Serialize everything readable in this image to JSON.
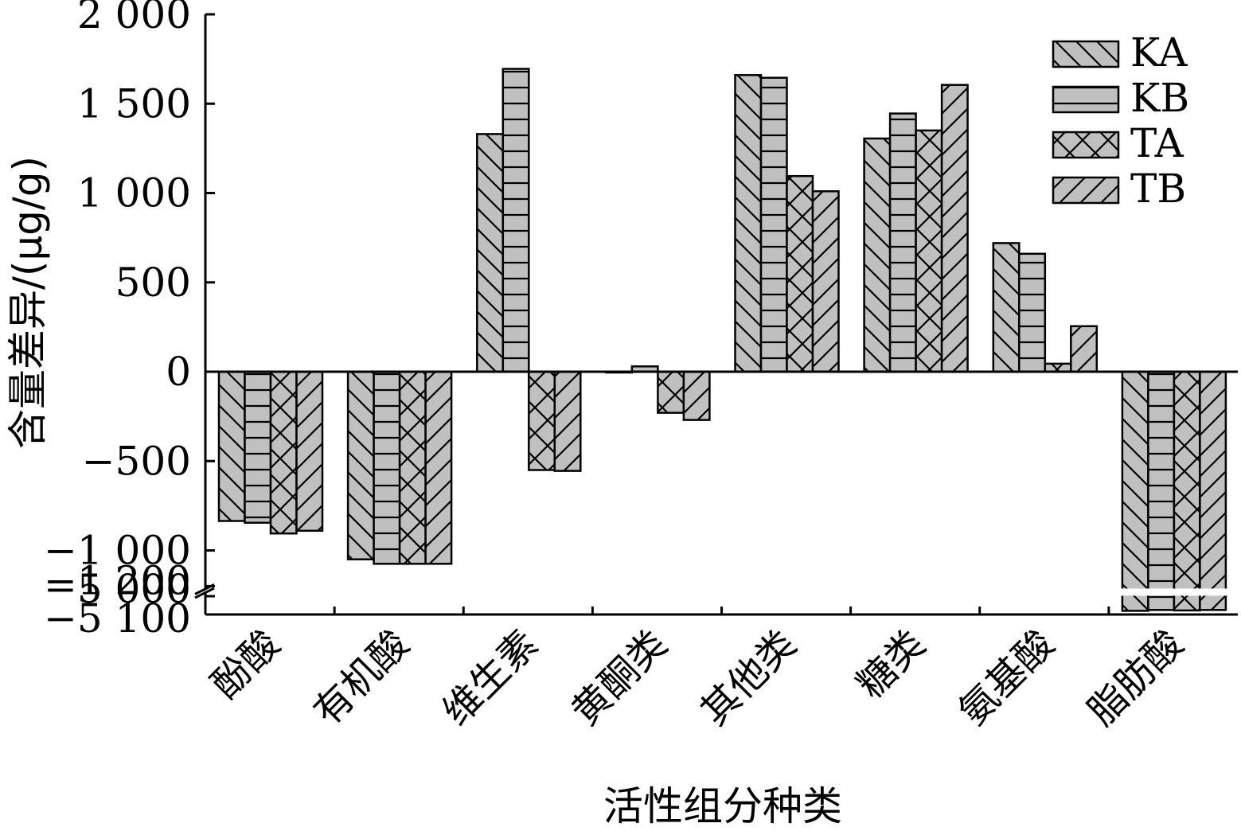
{
  "chart_data": {
    "type": "bar",
    "xlabel": "活性组分种类",
    "ylabel": "含量差异/(μg/g)",
    "categories": [
      "酚酸",
      "有机酸",
      "维生素",
      "黄酮类",
      "其他类",
      "糖类",
      "氨基酸",
      "脂肪酸"
    ],
    "series": [
      {
        "name": "KA",
        "pattern": "diag-down",
        "values": [
          -835,
          -1050,
          1330,
          0,
          1660,
          1305,
          720,
          -5080
        ]
      },
      {
        "name": "KB",
        "pattern": "horizontal",
        "values": [
          -845,
          -1075,
          1695,
          30,
          1645,
          1445,
          660,
          -5075
        ]
      },
      {
        "name": "TA",
        "pattern": "crosshatch",
        "values": [
          -905,
          -1075,
          -550,
          -230,
          1095,
          1350,
          45,
          -5078
        ]
      },
      {
        "name": "TB",
        "pattern": "diag-up",
        "values": [
          -890,
          -1075,
          -555,
          -270,
          1010,
          1605,
          255,
          -5075
        ]
      }
    ],
    "y_ticks": [
      "2 000",
      "1 500",
      "1 000",
      "500",
      "0",
      "−500",
      "−1 000",
      "−1 200",
      "−5 000",
      "−5 100"
    ],
    "y_tick_values": [
      2000,
      1500,
      1000,
      500,
      0,
      -500,
      -1000,
      -1200,
      -5000,
      -5100
    ],
    "ylim": [
      -5100,
      2000
    ],
    "axis_break": [
      -1200,
      -5000
    ],
    "legend_position": "top-right",
    "bar_fill": "#c0c0c0",
    "bar_stroke": "#000000"
  }
}
